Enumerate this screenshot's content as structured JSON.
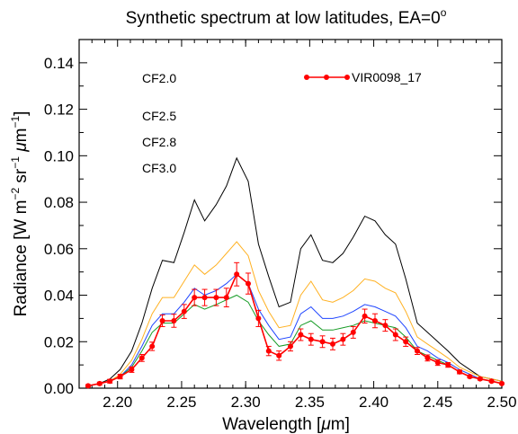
{
  "chart_data": {
    "type": "line",
    "title_main": "Synthetic spectrum at low latitudes, EA=0",
    "title_sup": "o",
    "xlabel_main": "Wavelength [",
    "xlabel_mu": "μ",
    "xlabel_end": "m]",
    "ylabel": {
      "a": "Radiance [W m",
      "a_sup": "−2",
      "b": " sr",
      "b_sup": "−1",
      "c_mu": " μ",
      "c": "m",
      "c_sup": "−1",
      "d": "]"
    },
    "xlim": [
      2.17,
      2.5
    ],
    "ylim": [
      0.0,
      0.15
    ],
    "xticks": [
      "2.20",
      "2.25",
      "2.30",
      "2.35",
      "2.40",
      "2.45",
      "2.50"
    ],
    "yticks": [
      "0.00",
      "0.02",
      "0.04",
      "0.06",
      "0.08",
      "0.10",
      "0.12",
      "0.14"
    ],
    "x": [
      2.177,
      2.186,
      2.194,
      2.202,
      2.211,
      2.219,
      2.227,
      2.235,
      2.244,
      2.252,
      2.26,
      2.268,
      2.277,
      2.285,
      2.293,
      2.302,
      2.31,
      2.318,
      2.326,
      2.335,
      2.343,
      2.351,
      2.36,
      2.368,
      2.376,
      2.384,
      2.393,
      2.401,
      2.409,
      2.417,
      2.425,
      2.434,
      2.442,
      2.45,
      2.458,
      2.467,
      2.475,
      2.483,
      2.492,
      2.5
    ],
    "series": [
      {
        "name": "CF2.0",
        "color": "#000000",
        "values": [
          0.001,
          0.002,
          0.004,
          0.008,
          0.016,
          0.028,
          0.043,
          0.055,
          0.054,
          0.067,
          0.081,
          0.072,
          0.079,
          0.087,
          0.099,
          0.089,
          0.062,
          0.048,
          0.035,
          0.037,
          0.06,
          0.066,
          0.055,
          0.054,
          0.058,
          0.065,
          0.074,
          0.072,
          0.066,
          0.062,
          0.047,
          0.028,
          0.024,
          0.02,
          0.016,
          0.011,
          0.008,
          0.005,
          0.004,
          0.003
        ]
      },
      {
        "name": "CF2.5",
        "color": "#ffb122",
        "values": [
          0.001,
          0.002,
          0.003,
          0.006,
          0.012,
          0.021,
          0.032,
          0.039,
          0.039,
          0.046,
          0.053,
          0.049,
          0.053,
          0.058,
          0.063,
          0.057,
          0.042,
          0.033,
          0.026,
          0.027,
          0.04,
          0.046,
          0.038,
          0.037,
          0.039,
          0.042,
          0.047,
          0.046,
          0.043,
          0.041,
          0.033,
          0.022,
          0.019,
          0.016,
          0.013,
          0.009,
          0.007,
          0.005,
          0.004,
          0.003
        ]
      },
      {
        "name": "CF2.8",
        "color": "#1f45ff",
        "values": [
          0.001,
          0.002,
          0.003,
          0.005,
          0.01,
          0.018,
          0.027,
          0.032,
          0.032,
          0.037,
          0.043,
          0.04,
          0.042,
          0.045,
          0.049,
          0.045,
          0.034,
          0.027,
          0.021,
          0.022,
          0.032,
          0.035,
          0.03,
          0.03,
          0.031,
          0.033,
          0.036,
          0.035,
          0.033,
          0.031,
          0.026,
          0.018,
          0.016,
          0.013,
          0.011,
          0.008,
          0.006,
          0.004,
          0.003,
          0.002
        ]
      },
      {
        "name": "CF3.0",
        "color": "#159b24",
        "values": [
          0.001,
          0.002,
          0.003,
          0.005,
          0.009,
          0.016,
          0.024,
          0.028,
          0.028,
          0.032,
          0.036,
          0.034,
          0.036,
          0.038,
          0.04,
          0.037,
          0.029,
          0.023,
          0.018,
          0.019,
          0.027,
          0.029,
          0.025,
          0.025,
          0.026,
          0.027,
          0.029,
          0.028,
          0.027,
          0.026,
          0.022,
          0.016,
          0.014,
          0.012,
          0.01,
          0.007,
          0.005,
          0.004,
          0.003,
          0.002
        ]
      }
    ],
    "observed": {
      "name": "VIR0098_17",
      "color": "#ff0000",
      "values": [
        0.001,
        0.002,
        0.003,
        0.005,
        0.008,
        0.013,
        0.018,
        0.029,
        0.029,
        0.033,
        0.039,
        0.039,
        0.039,
        0.039,
        0.049,
        0.045,
        0.03,
        0.016,
        0.014,
        0.018,
        0.023,
        0.021,
        0.02,
        0.019,
        0.021,
        0.024,
        0.031,
        0.029,
        0.027,
        0.023,
        0.02,
        0.016,
        0.013,
        0.011,
        0.01,
        0.007,
        0.005,
        0.004,
        0.003,
        0.002
      ],
      "errors": [
        0.0005,
        0.0006,
        0.0008,
        0.001,
        0.0012,
        0.0015,
        0.0018,
        0.0025,
        0.0028,
        0.003,
        0.0035,
        0.0035,
        0.0035,
        0.004,
        0.005,
        0.0045,
        0.0035,
        0.002,
        0.002,
        0.002,
        0.0025,
        0.0025,
        0.0025,
        0.0025,
        0.0025,
        0.0025,
        0.003,
        0.003,
        0.0025,
        0.0025,
        0.002,
        0.0015,
        0.0013,
        0.0012,
        0.001,
        0.0008,
        0.0006,
        0.0005,
        0.0004,
        0.0003
      ]
    },
    "legend_position": "top-left (models), top-right (observation)",
    "grid": false
  }
}
